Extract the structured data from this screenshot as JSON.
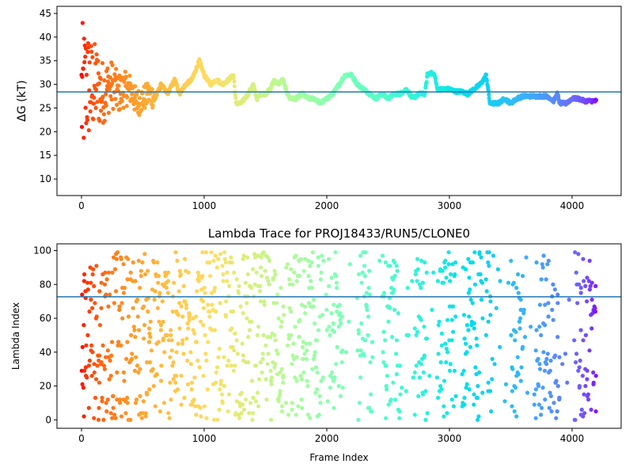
{
  "chart_data": [
    {
      "type": "scatter",
      "title": "",
      "xlabel": "",
      "ylabel": "ΔG (kT)",
      "xlim": [
        -200,
        4400
      ],
      "ylim": [
        6.5,
        46.5
      ],
      "xticks": [
        0,
        1000,
        2000,
        3000,
        4000
      ],
      "yticks": [
        10,
        15,
        20,
        25,
        30,
        35,
        40,
        45
      ],
      "hline": 28.4,
      "hline_color": "#1f77b4",
      "colormap": "rainbow (red at early frames → violet at late frames)",
      "n_frames": 4200,
      "series_keypoints": {
        "x": [
          0,
          40,
          80,
          120,
          160,
          200,
          250,
          300,
          350,
          400,
          450,
          500,
          560,
          600,
          650,
          700,
          760,
          800,
          850,
          900,
          960,
          1000,
          1050,
          1100,
          1150,
          1200,
          1240,
          1260,
          1300,
          1360,
          1400,
          1430,
          1460,
          1500,
          1540,
          1570,
          1600,
          1640,
          1680,
          1700,
          1750,
          1800,
          1850,
          1880,
          1900,
          1950,
          2000,
          2050,
          2100,
          2150,
          2200,
          2250,
          2300,
          2350,
          2400,
          2450,
          2500,
          2550,
          2600,
          2650,
          2700,
          2750,
          2800,
          2820,
          2840,
          2880,
          2900,
          2950,
          3000,
          3050,
          3100,
          3150,
          3200,
          3250,
          3280,
          3300,
          3330,
          3360,
          3400,
          3450,
          3500,
          3550,
          3600,
          3650,
          3700,
          3750,
          3800,
          3850,
          3880,
          3900,
          3930,
          3950,
          4000,
          4050,
          4100,
          4150,
          4200
        ],
        "y": [
          27,
          30,
          29,
          30,
          28,
          29,
          30,
          28,
          29,
          29,
          26,
          27,
          28,
          27,
          30,
          28,
          31,
          28,
          30,
          31,
          35,
          32,
          30,
          31,
          30,
          31,
          32,
          26,
          26,
          28,
          30,
          27,
          28,
          28,
          29,
          31,
          30,
          31,
          28,
          27,
          27,
          28,
          27,
          27,
          27,
          26,
          27,
          28,
          30,
          32,
          32,
          30,
          29,
          28,
          27,
          28,
          27,
          28,
          28,
          29,
          27,
          28,
          28,
          32,
          32.5,
          32,
          29,
          29,
          29,
          28.5,
          28.5,
          28,
          29,
          30,
          31,
          32,
          26,
          26,
          26,
          27,
          26,
          27,
          27.5,
          27.5,
          27.5,
          27.5,
          27.5,
          26.5,
          28,
          26,
          26,
          26,
          27,
          27,
          26.5,
          26.5,
          26.5
        ]
      }
    },
    {
      "type": "scatter",
      "title": "Lambda Trace for PROJ18433/RUN5/CLONE0",
      "xlabel": "Frame Index",
      "ylabel": "Lambda Index",
      "xlim": [
        -200,
        4400
      ],
      "ylim": [
        -5,
        104
      ],
      "xticks": [
        0,
        1000,
        2000,
        3000,
        4000
      ],
      "yticks": [
        0,
        20,
        40,
        60,
        80,
        100
      ],
      "hline": 72.7,
      "hline_color": "#1f77b4",
      "colormap": "rainbow (red at early frames → violet at late frames)",
      "n_frames": 4200,
      "value_range": [
        0,
        99
      ],
      "dense_bands_x": [
        [
          1680,
          1960
        ],
        [
          2020,
          2130
        ],
        [
          2250,
          2370
        ],
        [
          2450,
          2600
        ],
        [
          2720,
          2820
        ],
        [
          2900,
          3050
        ],
        [
          3100,
          3270
        ],
        [
          3300,
          3350
        ],
        [
          3500,
          3600
        ],
        [
          3700,
          3900
        ],
        [
          4020,
          4200
        ]
      ]
    }
  ]
}
